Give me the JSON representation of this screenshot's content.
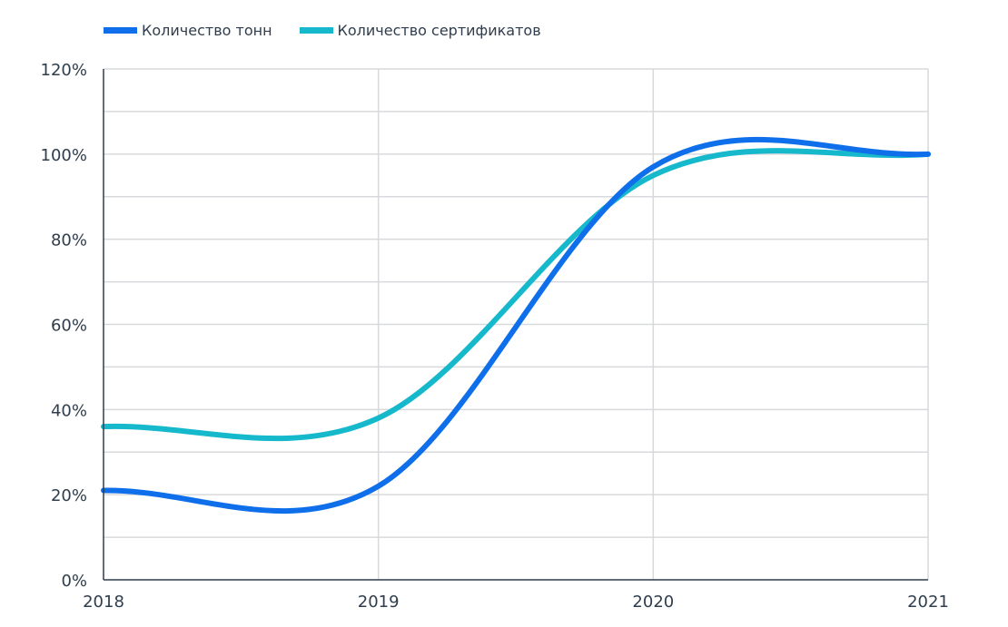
{
  "legend": {
    "items": [
      {
        "label": "Количество тонн",
        "color": "#0f6fea"
      },
      {
        "label": "Количество сертификатов",
        "color": "#16b8cc"
      }
    ]
  },
  "colors": {
    "grid": "#d7d9dc",
    "axis": "#2f3d4c",
    "text": "#2f3d4c"
  },
  "chart_data": {
    "type": "line",
    "title": "",
    "xlabel": "",
    "ylabel": "",
    "x": [
      2018,
      2019,
      2020,
      2021
    ],
    "xticks": [
      "2018",
      "2019",
      "2020",
      "2021"
    ],
    "yticks": [
      "0%",
      "20%",
      "40%",
      "60%",
      "80%",
      "100%",
      "120%"
    ],
    "ylim": [
      0,
      120
    ],
    "grid": true,
    "legend_position": "top-left",
    "series": [
      {
        "name": "Количество тонн",
        "color": "#0f6fea",
        "values": [
          21,
          22,
          97,
          100
        ]
      },
      {
        "name": "Количество сертификатов",
        "color": "#16b8cc",
        "values": [
          36,
          38,
          95,
          100
        ]
      }
    ]
  }
}
